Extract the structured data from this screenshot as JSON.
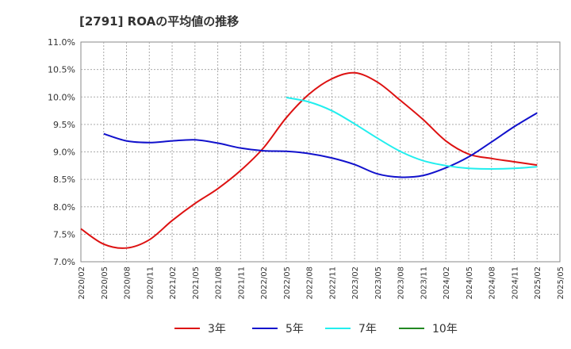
{
  "chart_data": {
    "type": "line",
    "title": "[2791]  ROAの平均値の推移",
    "xlabel": "",
    "ylabel": "",
    "ylim": [
      7.0,
      11.0
    ],
    "grid": true,
    "legend_position": "bottom",
    "y_ticks": [
      "11.0%",
      "10.5%",
      "10.0%",
      "9.5%",
      "9.0%",
      "8.5%",
      "8.0%",
      "7.5%",
      "7.0%"
    ],
    "x_ticks": [
      "2020/02",
      "2020/05",
      "2020/08",
      "2020/11",
      "2021/02",
      "2021/05",
      "2021/08",
      "2021/11",
      "2022/02",
      "2022/05",
      "2022/08",
      "2022/11",
      "2023/02",
      "2023/05",
      "2023/08",
      "2023/11",
      "2024/02",
      "2024/05",
      "2024/08",
      "2024/11",
      "2025/02",
      "2025/05"
    ],
    "series": [
      {
        "name": "3年",
        "color": "#dd1111",
        "points": [
          [
            "2020/02",
            7.6
          ],
          [
            "2020/05",
            7.32
          ],
          [
            "2020/08",
            7.25
          ],
          [
            "2020/11",
            7.4
          ],
          [
            "2021/02",
            7.75
          ],
          [
            "2021/05",
            8.06
          ],
          [
            "2021/08",
            8.33
          ],
          [
            "2021/11",
            8.66
          ],
          [
            "2022/02",
            9.07
          ],
          [
            "2022/05",
            9.62
          ],
          [
            "2022/08",
            10.05
          ],
          [
            "2022/11",
            10.33
          ],
          [
            "2023/02",
            10.44
          ],
          [
            "2023/05",
            10.27
          ],
          [
            "2023/08",
            9.94
          ],
          [
            "2023/11",
            9.59
          ],
          [
            "2024/02",
            9.2
          ],
          [
            "2024/05",
            8.96
          ],
          [
            "2024/08",
            8.88
          ],
          [
            "2024/11",
            8.82
          ],
          [
            "2025/02",
            8.76
          ]
        ]
      },
      {
        "name": "5年",
        "color": "#1111cc",
        "points": [
          [
            "2020/05",
            9.33
          ],
          [
            "2020/08",
            9.2
          ],
          [
            "2020/11",
            9.17
          ],
          [
            "2021/02",
            9.2
          ],
          [
            "2021/05",
            9.22
          ],
          [
            "2021/08",
            9.16
          ],
          [
            "2021/11",
            9.07
          ],
          [
            "2022/02",
            9.02
          ],
          [
            "2022/05",
            9.01
          ],
          [
            "2022/08",
            8.97
          ],
          [
            "2022/11",
            8.89
          ],
          [
            "2023/02",
            8.77
          ],
          [
            "2023/05",
            8.6
          ],
          [
            "2023/08",
            8.54
          ],
          [
            "2023/11",
            8.57
          ],
          [
            "2024/02",
            8.71
          ],
          [
            "2024/05",
            8.91
          ],
          [
            "2024/08",
            9.18
          ],
          [
            "2024/11",
            9.46
          ],
          [
            "2025/02",
            9.71
          ]
        ]
      },
      {
        "name": "7年",
        "color": "#22eeee",
        "points": [
          [
            "2022/05",
            9.99
          ],
          [
            "2022/08",
            9.91
          ],
          [
            "2022/11",
            9.75
          ],
          [
            "2023/02",
            9.51
          ],
          [
            "2023/05",
            9.25
          ],
          [
            "2023/08",
            9.01
          ],
          [
            "2023/11",
            8.84
          ],
          [
            "2024/02",
            8.75
          ],
          [
            "2024/05",
            8.7
          ],
          [
            "2024/08",
            8.69
          ],
          [
            "2024/11",
            8.7
          ],
          [
            "2025/02",
            8.73
          ]
        ]
      },
      {
        "name": "10年",
        "color": "#228822",
        "points": []
      }
    ]
  }
}
